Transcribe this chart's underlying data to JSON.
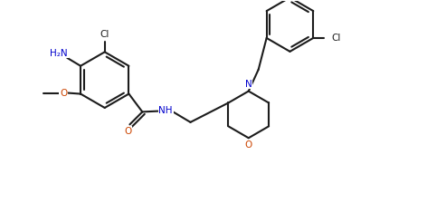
{
  "bg": "#ffffff",
  "lc": "#1c1c1c",
  "Nc": "#0000cc",
  "Oc": "#cc4400",
  "lw": 1.5,
  "fs": 7.5,
  "figsize": [
    4.72,
    2.24
  ],
  "dpi": 100,
  "xlim": [
    0,
    9.44
  ],
  "ylim": [
    0,
    4.48
  ]
}
